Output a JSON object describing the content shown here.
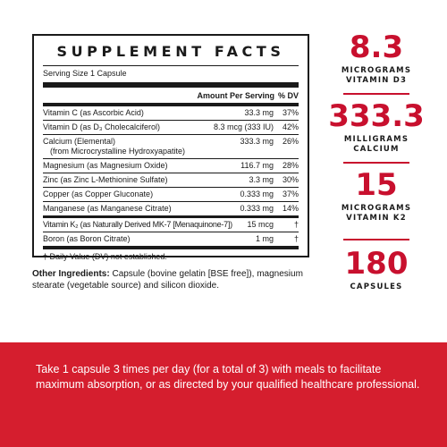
{
  "facts": {
    "title": "SUPPLEMENT FACTS",
    "serving_size": "Serving Size 1 Capsule",
    "header_amount": "Amount Per Serving",
    "header_dv": "% DV",
    "rows": [
      {
        "name": "Vitamin C (as Ascorbic Acid)",
        "amount": "33.3 mg",
        "dv": "37%"
      },
      {
        "name": "Vitamin D (as D₃ Cholecalciferol)",
        "amount": "8.3 mcg (333 IU)",
        "dv": "42%"
      },
      {
        "name": "Calcium (Elemental)",
        "sub": "(from Microcrystalline Hydroxyapatite)",
        "amount": "333.3 mg",
        "dv": "26%"
      },
      {
        "name": "Magnesium (as Magnesium Oxide)",
        "amount": "116.7 mg",
        "dv": "28%"
      },
      {
        "name": "Zinc (as Zinc L-Methionine Sulfate)",
        "amount": "3.3 mg",
        "dv": "30%"
      },
      {
        "name": "Copper (as Copper Gluconate)",
        "amount": "0.333 mg",
        "dv": "37%"
      },
      {
        "name": "Manganese (as Manganese Citrate)",
        "amount": "0.333 mg",
        "dv": "14%"
      },
      {
        "name": "Vitamin K₂ (as Naturally Derived MK-7 [Menaquinone-7])",
        "amount": "15 mcg",
        "dv": "†"
      },
      {
        "name": "Boron (as Boron Citrate)",
        "amount": "1 mg",
        "dv": "†"
      }
    ],
    "footnote": "† Daily Value (DV) not established."
  },
  "other_ingredients": {
    "label": "Other Ingredients:",
    "text": " Capsule (bovine gelatin [BSE free]), magnesium stearate (vegetable source) and silicon dioxide."
  },
  "stats": [
    {
      "value": "8.3",
      "unit_line1": "MICROGRAMS",
      "unit_line2": "VITAMIN D3"
    },
    {
      "value": "333.3",
      "unit_line1": "MILLIGRAMS",
      "unit_line2": "CALCIUM"
    },
    {
      "value": "15",
      "unit_line1": "MICROGRAMS",
      "unit_line2": "VITAMIN K2"
    },
    {
      "value": "180",
      "unit_line1": "CAPSULES",
      "unit_line2": ""
    }
  ],
  "instructions": "Take 1 capsule 3 times per day (for a total of 3) with meals to facilitate maximum absorption, or as directed by your qualified healthcare professional.",
  "colors": {
    "accent": "#c8102e",
    "band": "#d51e2e",
    "text": "#1a1a1a"
  }
}
